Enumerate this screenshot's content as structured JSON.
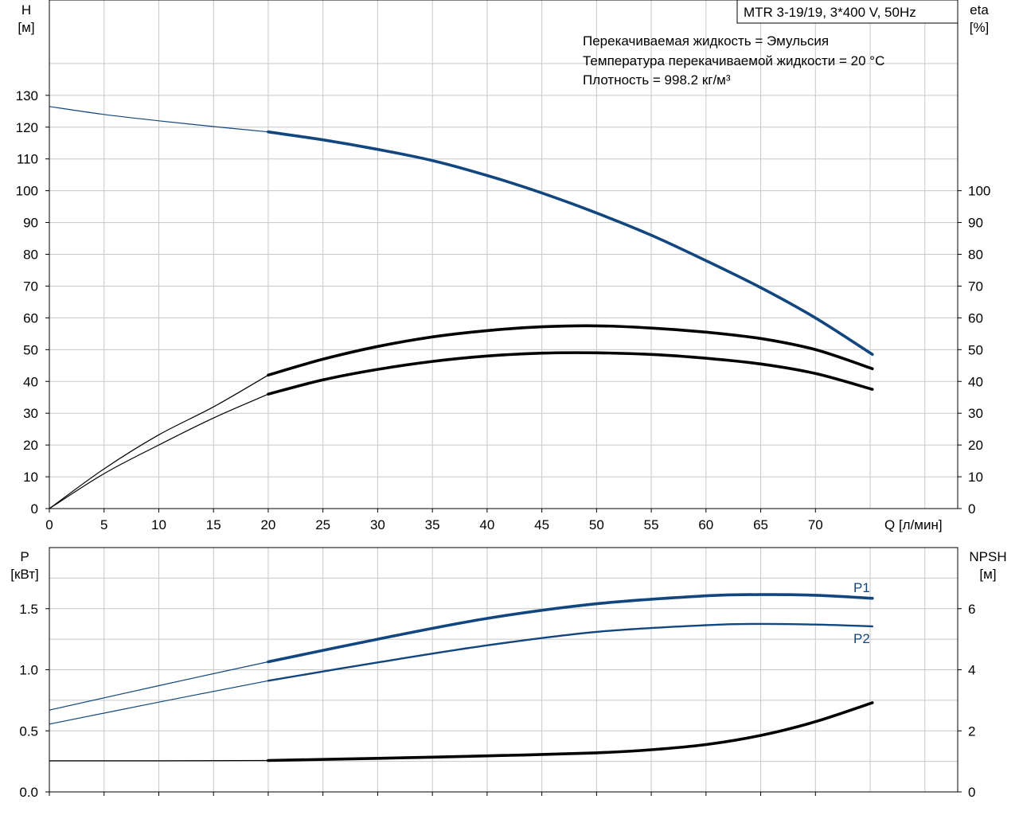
{
  "colors": {
    "blue": "#12467f",
    "black": "#000000",
    "grid": "#c8c8c8",
    "frame": "#000000"
  },
  "header": {
    "model": "MTR 3-19/19, 3*400 V, 50Hz",
    "liquid_line": "Перекачиваемая жидкость = Эмульсия",
    "temp_line": "Температура перекачиваемой жидкости = 20 °C",
    "density_line": "Плотность = 998.2 кг/м³"
  },
  "axes": {
    "h_label": "H",
    "h_unit": "[м]",
    "eta_label": "eta",
    "eta_unit": "[%]",
    "q_label": "Q [л/мин]",
    "p_label": "P",
    "p_unit": "[кВт]",
    "npsh_label": "NPSH",
    "npsh_unit": "[м]"
  },
  "chart_data": [
    {
      "type": "line",
      "x_ticks": [
        0,
        5,
        10,
        15,
        20,
        25,
        30,
        35,
        40,
        45,
        50,
        55,
        60,
        65,
        70
      ],
      "xlim": [
        0,
        83
      ],
      "left_axis": {
        "ticks": [
          0,
          10,
          20,
          30,
          40,
          50,
          60,
          70,
          80,
          90,
          100,
          110,
          120,
          130
        ],
        "ylim": [
          0,
          160
        ]
      },
      "right_axis": {
        "ticks": [
          0,
          10,
          20,
          30,
          40,
          50,
          60,
          70,
          80,
          90,
          100
        ],
        "ylim": [
          0,
          160
        ]
      },
      "grid": true,
      "series": [
        {
          "key": "H",
          "axis": "left",
          "color": "#12467f",
          "x": [
            0,
            5,
            10,
            15,
            20,
            25,
            30,
            35,
            40,
            45,
            50,
            55,
            60,
            65,
            70,
            75.2
          ],
          "y": [
            126.5,
            124,
            122,
            120.2,
            118.5,
            116,
            113,
            109.5,
            104.8,
            99.3,
            93,
            86,
            78,
            69.5,
            60,
            48.5
          ]
        },
        {
          "key": "eta_overall",
          "axis": "right",
          "color": "#000000",
          "x": [
            0,
            5,
            10,
            15,
            20,
            25,
            30,
            35,
            40,
            45,
            50,
            55,
            60,
            65,
            70,
            75.2
          ],
          "y": [
            0,
            12.5,
            23.2,
            32,
            42,
            47,
            51,
            54,
            56,
            57.2,
            57.5,
            56.8,
            55.5,
            53.5,
            50,
            44
          ]
        },
        {
          "key": "eta_pump",
          "axis": "right",
          "color": "#000000",
          "x": [
            0,
            5,
            10,
            15,
            20,
            25,
            30,
            35,
            40,
            45,
            50,
            55,
            60,
            65,
            70,
            75.2
          ],
          "y": [
            0,
            11,
            20,
            28.5,
            36,
            40.5,
            43.8,
            46.3,
            48,
            48.9,
            49,
            48.5,
            47.3,
            45.5,
            42.5,
            37.5
          ]
        }
      ]
    },
    {
      "type": "line",
      "x_ticks": [
        0,
        5,
        10,
        15,
        20,
        25,
        30,
        35,
        40,
        45,
        50,
        55,
        60,
        65,
        70
      ],
      "xlim": [
        0,
        83
      ],
      "left_axis": {
        "ticks": [
          0.0,
          0.5,
          1.0,
          1.5
        ],
        "labels": [
          "0.0",
          "0.5",
          "1.0",
          "1.5"
        ],
        "ylim": [
          0,
          2.0
        ]
      },
      "right_axis": {
        "ticks": [
          0,
          2,
          4,
          6
        ],
        "ylim": [
          0,
          8
        ]
      },
      "grid": true,
      "series": [
        {
          "key": "P1",
          "name": "P1",
          "axis": "left",
          "color": "#12467f",
          "x": [
            0,
            10,
            20,
            30,
            40,
            50,
            60,
            65,
            70,
            75.2
          ],
          "y": [
            0.67,
            0.87,
            1.065,
            1.25,
            1.42,
            1.54,
            1.605,
            1.615,
            1.61,
            1.585
          ]
        },
        {
          "key": "P2",
          "name": "P2",
          "axis": "left",
          "color": "#12467f",
          "x": [
            0,
            10,
            20,
            30,
            40,
            50,
            60,
            65,
            70,
            75.2
          ],
          "y": [
            0.555,
            0.735,
            0.91,
            1.06,
            1.2,
            1.31,
            1.365,
            1.375,
            1.37,
            1.355
          ]
        },
        {
          "key": "NPSH",
          "axis": "right",
          "color": "#000000",
          "x": [
            0,
            10,
            20,
            30,
            40,
            50,
            55,
            60,
            65,
            70,
            75.2
          ],
          "y": [
            1.02,
            1.02,
            1.03,
            1.1,
            1.18,
            1.28,
            1.38,
            1.55,
            1.85,
            2.3,
            2.92
          ]
        }
      ]
    }
  ]
}
